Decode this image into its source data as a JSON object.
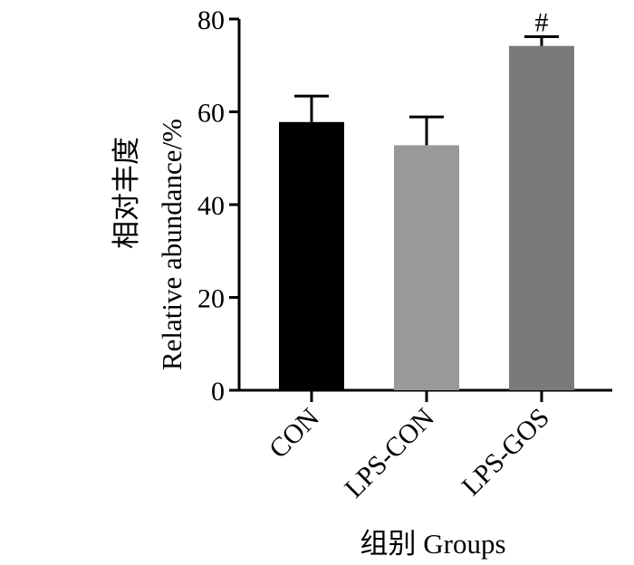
{
  "chart_data": {
    "type": "bar",
    "categories": [
      "CON",
      "LPS-CON",
      "LPS-GOS"
    ],
    "values": [
      57.8,
      52.8,
      74.2
    ],
    "errors": [
      5.6,
      6.1,
      2.0
    ],
    "colors": [
      "#000000",
      "#999999",
      "#7a7a7a"
    ],
    "annotations": [
      "",
      "",
      "#"
    ],
    "ylim": [
      0,
      80
    ],
    "yticks": [
      0,
      20,
      40,
      60,
      80
    ],
    "ylabel": "Relative abundance/%",
    "ylabel_cn": "相对丰度",
    "xlabel": "组别  Groups",
    "grid": false,
    "legend": "none"
  }
}
